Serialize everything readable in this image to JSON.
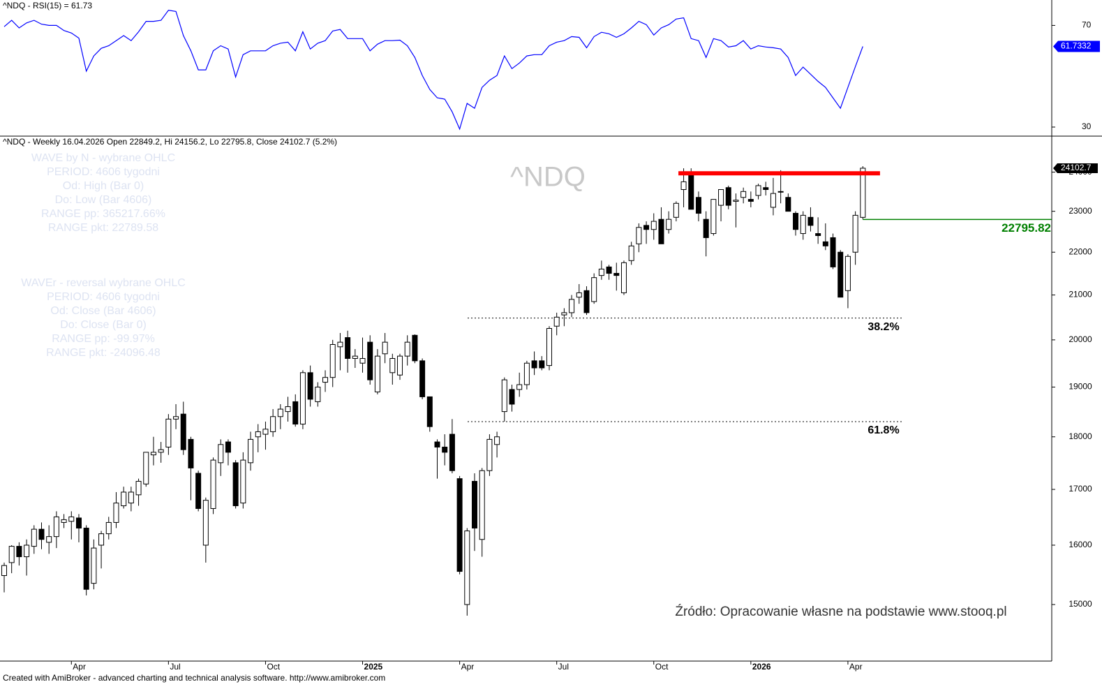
{
  "chart_data": [
    {
      "type": "line",
      "title": "^NDQ - RSI(15) = 61.73",
      "color": "#0000ff",
      "values": [
        69.5,
        72,
        69,
        71,
        72,
        70.5,
        70,
        70,
        68,
        67,
        65,
        52,
        58,
        61,
        62,
        64,
        66,
        64,
        67.5,
        71.6,
        71.6,
        72,
        76,
        75.5,
        66,
        60,
        52.5,
        52.5,
        60,
        62,
        60.7,
        49.7,
        58.5,
        60,
        60,
        60,
        62,
        63,
        63.4,
        60,
        67.5,
        60.7,
        63,
        64,
        67.8,
        68.4,
        64.8,
        64.8,
        64.8,
        60,
        62.6,
        64,
        64,
        64.2,
        62,
        57.4,
        50.3,
        44.8,
        41.5,
        41,
        36,
        29.2,
        39.3,
        37.4,
        45.6,
        48.4,
        50.3,
        58,
        53,
        55.2,
        58,
        58.5,
        58.5,
        62,
        63.4,
        64,
        65.6,
        65.3,
        61.2,
        65.6,
        67.3,
        66.7,
        65.3,
        66.7,
        69,
        71.6,
        70.3,
        66.2,
        69,
        70.3,
        72.5,
        73,
        64.8,
        64,
        57.4,
        64.8,
        64,
        61.5,
        62,
        64,
        60.7,
        62,
        61.5,
        61.2,
        60.7,
        57.4,
        50.3,
        53.6,
        50.8,
        48,
        45.6,
        41.5,
        37.4,
        45.6,
        53.8,
        61.7332
      ],
      "ylim": [
        26.7,
        80
      ],
      "yticks": [
        30,
        70
      ]
    },
    {
      "type": "candlestick",
      "title": "^NDQ - Weekly 16.04.2026 Open 22849.2, Hi 24156.2, Lo 22795.8, Close 24102.7 (5.2%)",
      "watermark": "^NDQ",
      "open": [
        15480,
        15700,
        15980,
        15800,
        15980,
        16280,
        16050,
        16150,
        16400,
        16420,
        16480,
        16300,
        15350,
        16000,
        16200,
        16400,
        16700,
        16750,
        16900,
        17100,
        17650,
        17700,
        17800,
        18350,
        18450,
        17950,
        17300,
        16000,
        16650,
        17500,
        17900,
        17500,
        16750,
        17500,
        18000,
        18050,
        18100,
        18400,
        18500,
        18700,
        18250,
        19300,
        18700,
        19100,
        19200,
        19850,
        20050,
        19600,
        19500,
        19950,
        18900,
        19700,
        19300,
        19250,
        19650,
        20100,
        19550,
        18800,
        17900,
        17800,
        18050,
        17200,
        15000,
        17150,
        16100,
        17350,
        17850,
        18500,
        18950,
        18950,
        19050,
        19550,
        19550,
        19450,
        20300,
        20550,
        20600,
        20950,
        21100,
        20850,
        21450,
        21650,
        21500,
        21050,
        21800,
        22200,
        22650,
        22550,
        22800,
        22550,
        22850,
        23550,
        23950,
        23350,
        22800,
        22450,
        23150,
        23600,
        23250,
        23350,
        23300,
        23400,
        23600,
        23100,
        23500,
        23350,
        22950,
        22450,
        22850,
        22450,
        22250,
        22350,
        22000,
        21100,
        22000,
        22849.2
      ],
      "high": [
        15700,
        16000,
        16050,
        16100,
        16350,
        16400,
        16350,
        16600,
        16550,
        16600,
        16550,
        16350,
        16100,
        16250,
        16500,
        16950,
        17050,
        17050,
        17200,
        17700,
        18000,
        17900,
        18450,
        18650,
        18700,
        18000,
        17350,
        16850,
        17600,
        17950,
        17950,
        17550,
        17700,
        18100,
        18250,
        18300,
        18550,
        18650,
        18800,
        18850,
        19350,
        19450,
        19100,
        19350,
        20000,
        20150,
        20200,
        19800,
        20050,
        20100,
        19800,
        20150,
        19700,
        19700,
        20100,
        20120,
        19600,
        18800,
        17950,
        18050,
        18350,
        17250,
        16300,
        17300,
        17400,
        18050,
        18100,
        19200,
        19050,
        19300,
        19550,
        19750,
        19650,
        20300,
        20600,
        20700,
        21000,
        21250,
        21200,
        21500,
        21800,
        21700,
        21750,
        21800,
        22250,
        22700,
        22750,
        22950,
        23100,
        23000,
        23250,
        24100,
        24100,
        23500,
        23000,
        23300,
        23550,
        23650,
        23450,
        23600,
        23500,
        23700,
        23750,
        23850,
        24050,
        23450,
        23000,
        23000,
        23100,
        22850,
        22700,
        22450,
        22050,
        21950,
        23000,
        24156.2
      ],
      "low": [
        15200,
        15520,
        15650,
        15480,
        15850,
        15930,
        15850,
        15950,
        16300,
        16100,
        16050,
        15150,
        15250,
        15600,
        16100,
        16300,
        16650,
        16600,
        16700,
        17050,
        17450,
        17500,
        17650,
        18150,
        17650,
        16800,
        16600,
        15700,
        16550,
        17250,
        17450,
        16650,
        16650,
        17350,
        17700,
        17750,
        18000,
        18150,
        18300,
        18200,
        18150,
        18600,
        18600,
        18900,
        19000,
        19350,
        19300,
        19400,
        19300,
        19050,
        18850,
        19500,
        19050,
        19150,
        19450,
        19500,
        18750,
        18100,
        17200,
        17450,
        17300,
        15500,
        14820,
        15900,
        15800,
        17250,
        17600,
        18300,
        18500,
        18800,
        18950,
        19250,
        19350,
        19350,
        20100,
        20300,
        20500,
        20800,
        20550,
        20800,
        21350,
        21350,
        21100,
        21000,
        21700,
        22000,
        22200,
        22300,
        22200,
        22450,
        22750,
        23100,
        23050,
        22750,
        21900,
        22400,
        22750,
        23050,
        22600,
        23200,
        23100,
        23300,
        23400,
        22900,
        23200,
        23000,
        22400,
        22300,
        22500,
        22200,
        22050,
        21600,
        20950,
        20700,
        21700,
        22795.8
      ],
      "close": [
        15650,
        15980,
        15800,
        16000,
        16280,
        16100,
        16150,
        16500,
        16450,
        16500,
        16300,
        15250,
        15950,
        16200,
        16400,
        16750,
        16950,
        16950,
        17150,
        17700,
        17700,
        17750,
        18350,
        18400,
        17750,
        17400,
        16650,
        16800,
        17550,
        17850,
        17700,
        16700,
        17550,
        17950,
        18100,
        18150,
        18400,
        18550,
        18600,
        18250,
        19300,
        18750,
        19000,
        19200,
        19900,
        19950,
        19600,
        19650,
        19600,
        19150,
        19650,
        19950,
        19600,
        19650,
        19950,
        19550,
        18800,
        18200,
        17800,
        17700,
        17350,
        15550,
        16250,
        16300,
        17350,
        17950,
        18000,
        19150,
        18650,
        19050,
        19500,
        19400,
        19400,
        20250,
        20500,
        20600,
        20900,
        21050,
        20600,
        21400,
        21600,
        21500,
        21450,
        21750,
        22150,
        22600,
        22550,
        22750,
        22200,
        22800,
        23200,
        23750,
        23050,
        22950,
        22350,
        23300,
        23550,
        23150,
        23280,
        23500,
        23250,
        23650,
        23550,
        23450,
        23500,
        23000,
        22550,
        22900,
        22650,
        22400,
        22150,
        21650,
        20950,
        21900,
        22900,
        24102.7
      ],
      "up_color": "#ffffff",
      "down_color": "#000000",
      "log_scale": true,
      "ylim": [
        14106,
        24939
      ],
      "yticks": [
        15000,
        16000,
        17000,
        18000,
        19000,
        20000,
        21000,
        22000,
        23000,
        24000
      ],
      "xlim": [
        -0.56,
        140.3
      ],
      "xticks": [
        {
          "value": 9,
          "label": "Apr"
        },
        {
          "value": 22,
          "label": "Jul"
        },
        {
          "value": 35,
          "label": "Oct"
        },
        {
          "value": 48,
          "label": "2025"
        },
        {
          "value": 61,
          "label": "Apr"
        },
        {
          "value": 74,
          "label": "Jul"
        },
        {
          "value": 87,
          "label": "Oct"
        },
        {
          "value": 100,
          "label": "2026"
        },
        {
          "value": 113,
          "label": "Apr"
        }
      ],
      "resistance": {
        "value": 23970,
        "color": "#ff0000"
      },
      "stop": {
        "value": 22795.82,
        "color": "#008000"
      },
      "fib_levels": {
        "values": [
          20480,
          18300
        ],
        "labels": [
          "38.2%",
          "61.8%"
        ]
      },
      "wave_notes": [
        "WAVE by N - wybrane OHLC",
        "PERIOD: 4606 tygodni",
        "Od: High (Bar 0)",
        "Do: Low (Bar 4606)",
        "RANGE pp: 365217.66%",
        "RANGE pkt: 22789.58"
      ],
      "wave_r_notes": [
        "WAVEr - reversal wybrane OHLC",
        "PERIOD: 4606 tygodni",
        "Od: Close (Bar 4606)",
        "Do: Close (Bar 0)",
        "RANGE pp: -99.97%",
        "RANGE pkt: -24096.48"
      ]
    }
  ],
  "source": "Źródło: Opracowanie własne na podstawie www.stooq.pl",
  "footer": "Created with AmiBroker - advanced charting and technical analysis software. http://www.amibroker.com"
}
